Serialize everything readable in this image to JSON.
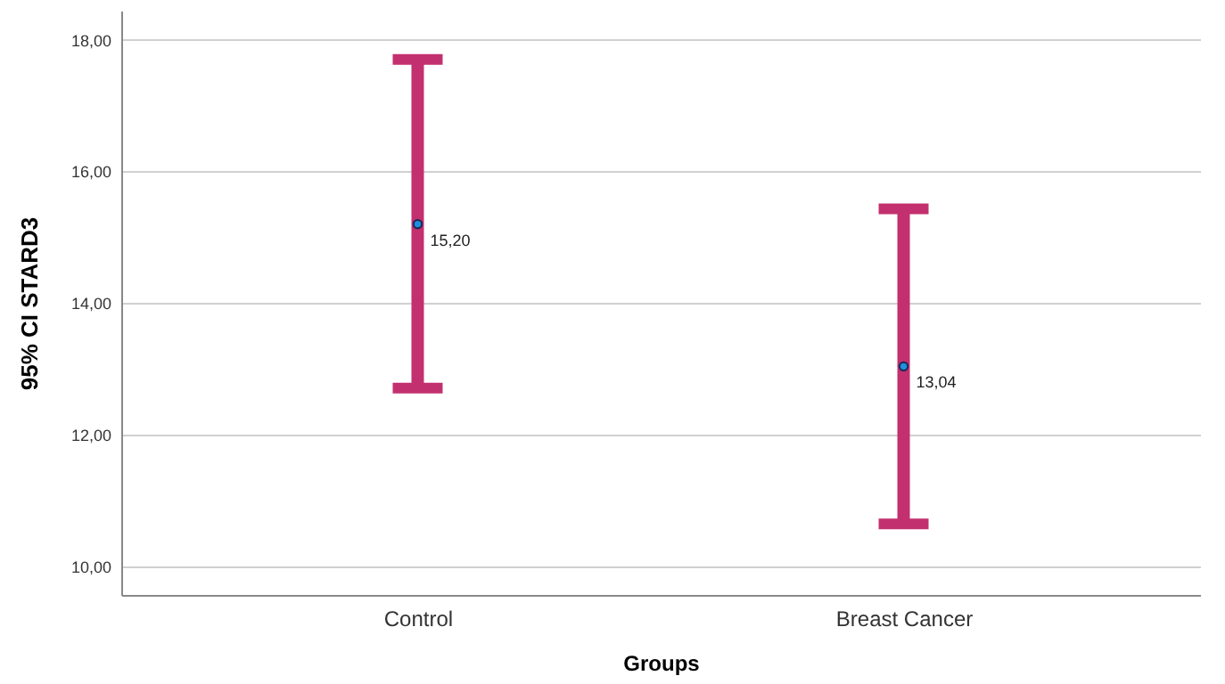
{
  "chart_data": {
    "type": "scatter",
    "xlabel": "Groups",
    "ylabel": "95% CI STARD3",
    "categories": [
      "Control",
      "Breast Cancer"
    ],
    "series": [
      {
        "color": "#1f8fe0",
        "values": [
          15.2,
          13.04
        ],
        "errors": [
          [
            12.71,
            17.7
          ],
          [
            10.65,
            15.43
          ]
        ],
        "value_labels": [
          "15,20",
          "13,04"
        ]
      }
    ],
    "ylim": [
      9.57,
      18.44
    ],
    "yticks": [
      {
        "value": 10,
        "label": "10,00"
      },
      {
        "value": 12,
        "label": "12,00"
      },
      {
        "value": 14,
        "label": "14,00"
      },
      {
        "value": 16,
        "label": "16,00"
      },
      {
        "value": 18,
        "label": "18,00"
      }
    ],
    "grid": "y",
    "marker": "circle"
  }
}
